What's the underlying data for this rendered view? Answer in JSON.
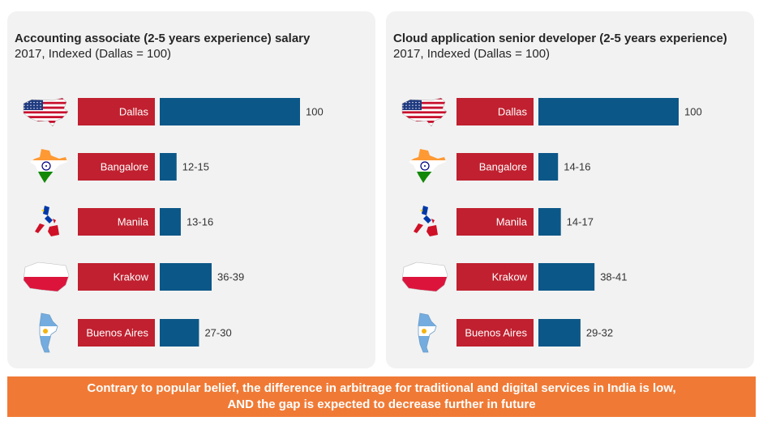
{
  "colors": {
    "city_label_bg": "#c0202f",
    "bar": "#0b5788",
    "banner": "#f07a35",
    "panel": "#f2f2f2"
  },
  "chart_data": [
    {
      "type": "bar",
      "orientation": "horizontal",
      "title": "Accounting associate (2-5 years experience) salary",
      "subtitle": "2017, Indexed (Dallas = 100)",
      "categories": [
        "Dallas",
        "Bangalore",
        "Manila",
        "Krakow",
        "Buenos Aires"
      ],
      "flags": [
        "usa-flag-map-icon",
        "india-flag-map-icon",
        "philippines-flag-map-icon",
        "poland-flag-map-icon",
        "argentina-flag-map-icon"
      ],
      "values": [
        100,
        12,
        15,
        37,
        28
      ],
      "value_labels": [
        "100",
        "12-15",
        "13-16",
        "36-39",
        "27-30"
      ],
      "xlim": [
        0,
        100
      ]
    },
    {
      "type": "bar",
      "orientation": "horizontal",
      "title": "Cloud application senior developer (2-5 years experience)",
      "subtitle": "2017, Indexed (Dallas = 100)",
      "categories": [
        "Dallas",
        "Bangalore",
        "Manila",
        "Krakow",
        "Buenos Aires"
      ],
      "flags": [
        "usa-flag-map-icon",
        "india-flag-map-icon",
        "philippines-flag-map-icon",
        "poland-flag-map-icon",
        "argentina-flag-map-icon"
      ],
      "values": [
        100,
        14,
        16,
        40,
        30
      ],
      "value_labels": [
        "100",
        "14-16",
        "14-17",
        "38-41",
        "29-32"
      ],
      "xlim": [
        0,
        100
      ]
    }
  ],
  "banner": {
    "line1": "Contrary to popular belief, the difference in arbitrage for traditional and digital services in India is low,",
    "line2": "AND the gap is expected to decrease further in future"
  }
}
